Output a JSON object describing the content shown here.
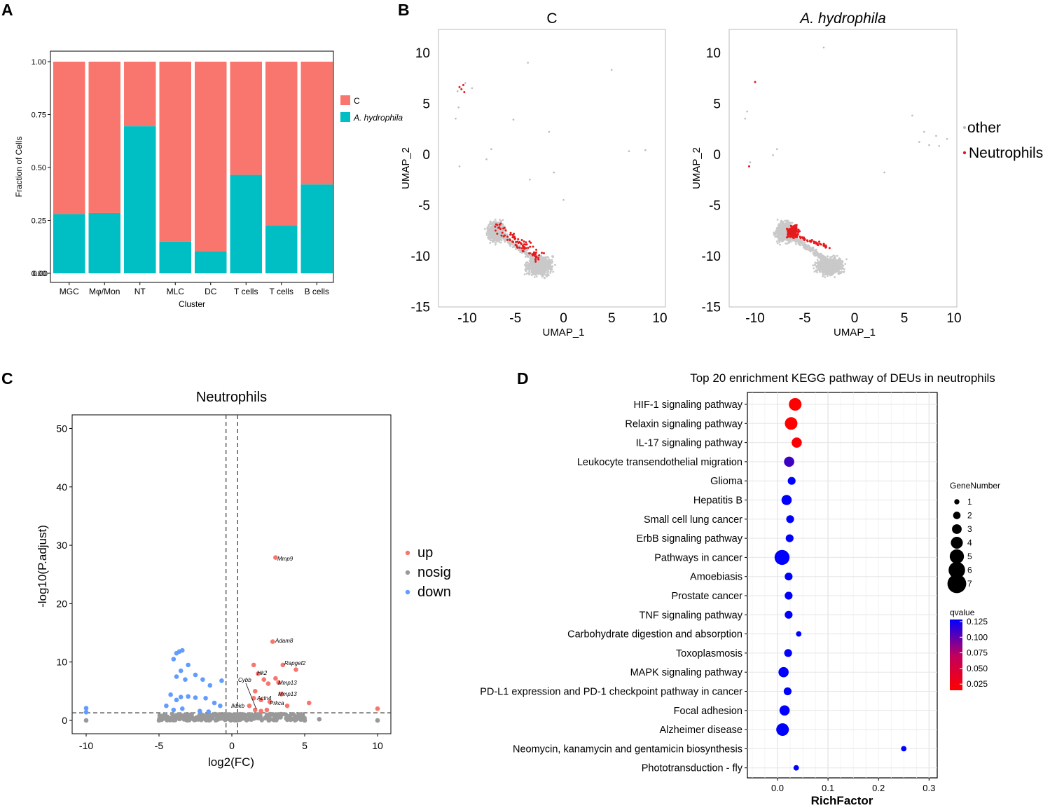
{
  "panel_labels": {
    "a": "A",
    "b": "B",
    "c": "C",
    "d": "D"
  },
  "colors": {
    "c": "#F8766D",
    "ah": "#00BFC4",
    "up": "#F8766D",
    "down": "#619CFF",
    "nosig": "#999999",
    "neutro": "#E41A1C",
    "other": "#C9C9C9",
    "q_low": "#FF0000",
    "q_high": "#0000FF"
  },
  "chart_data": [
    {
      "id": "A",
      "type": "bar",
      "stacked": true,
      "xlabel": "Cluster",
      "ylabel": "Fraction of Cells",
      "ylim": [
        0,
        1
      ],
      "yticks": [
        "0.00",
        "0.25",
        "0.50",
        "0.75",
        "1.00"
      ],
      "y_extra_tick": "0.00",
      "categories": [
        "MGC",
        "Mφ/Mon",
        "NT",
        "MLC",
        "DC",
        "T cells",
        "T cells",
        "B cells"
      ],
      "series": [
        {
          "name": "A. hydrophila",
          "values": [
            0.28,
            0.285,
            0.695,
            0.15,
            0.105,
            0.465,
            0.225,
            0.42
          ]
        },
        {
          "name": "C",
          "values": [
            0.72,
            0.715,
            0.305,
            0.85,
            0.895,
            0.535,
            0.775,
            0.58
          ]
        }
      ],
      "legend": [
        "C",
        "A. hydrophila"
      ]
    },
    {
      "id": "B",
      "type": "scatter",
      "panels": [
        {
          "title": "C",
          "xlabel": "UMAP_1",
          "ylabel": "UMAP_2"
        },
        {
          "title": "A. hydrophila",
          "xlabel": "UMAP_1",
          "ylabel": "UMAP_2"
        }
      ],
      "xticks": [
        "-10",
        "-5",
        "0",
        "5",
        "10"
      ],
      "yticks": [
        "10",
        "5",
        "0",
        "-5",
        "-10",
        "-15"
      ],
      "legend": [
        "other",
        "Neutrophils"
      ],
      "outlier_points": {
        "C": {
          "neutrophils": [
            [
              -10.4,
              6.8
            ],
            [
              -10.6,
              6.4
            ],
            [
              -10.3,
              6.1
            ],
            [
              -10.8,
              6.6
            ]
          ],
          "other": [
            [
              -10.2,
              7.0
            ],
            [
              -11,
              6.2
            ],
            [
              -9.5,
              6.5
            ],
            [
              -10.9,
              4.6
            ],
            [
              -11.2,
              3.5
            ],
            [
              -10.8,
              -1.2
            ],
            [
              -8.0,
              -0.5
            ],
            [
              -7.5,
              0.5
            ],
            [
              -1.5,
              2.2
            ],
            [
              -3.5,
              -2.5
            ],
            [
              -1.0,
              -1.8
            ],
            [
              0,
              -4.5
            ],
            [
              5,
              8.3
            ],
            [
              -3.7,
              9
            ],
            [
              6.8,
              0.3
            ],
            [
              8.5,
              0.4
            ],
            [
              -5.2,
              3.4
            ]
          ]
        },
        "A. hydrophila": {
          "neutrophils": [
            [
              -10.0,
              7.1
            ],
            [
              -10.6,
              -1.2
            ]
          ],
          "other": [
            [
              -10.8,
              4.2
            ],
            [
              -11.0,
              3.5
            ],
            [
              -10.5,
              -0.8
            ],
            [
              -8.2,
              -0.1
            ],
            [
              -7.8,
              0.5
            ],
            [
              -3.1,
              10.5
            ],
            [
              3,
              -1.8
            ],
            [
              5.8,
              3.8
            ],
            [
              7,
              2.2
            ],
            [
              8.2,
              1.8
            ],
            [
              9.3,
              1.5
            ],
            [
              6.5,
              1.2
            ],
            [
              7.5,
              0.9
            ],
            [
              8.5,
              0.8
            ]
          ]
        }
      }
    },
    {
      "id": "C",
      "type": "scatter",
      "title": "Neutrophils",
      "xlabel": "log2(FC)",
      "ylabel": "-log10(P.adjust)",
      "xlim": [
        -11,
        11
      ],
      "ylim": [
        -2,
        52
      ],
      "xticks": [
        "-10",
        "-5",
        "0",
        "5",
        "10"
      ],
      "yticks": [
        "0",
        "10",
        "20",
        "30",
        "40",
        "50"
      ],
      "vlines": [
        -0.4,
        0.4
      ],
      "hline": 1.3,
      "legend": [
        "up",
        "nosig",
        "down"
      ],
      "up": [
        [
          3,
          27.9
        ],
        [
          2.8,
          13.5
        ],
        [
          3.5,
          9.5
        ],
        [
          4.4,
          8.7
        ],
        [
          1.5,
          9.5
        ],
        [
          1.8,
          8
        ],
        [
          2.2,
          7
        ],
        [
          2.5,
          6.3
        ],
        [
          3,
          7.2
        ],
        [
          3.2,
          6.5
        ],
        [
          3.4,
          4.5
        ],
        [
          1.6,
          5
        ],
        [
          5.3,
          3
        ],
        [
          1.5,
          3.8
        ],
        [
          2,
          3.5
        ],
        [
          2.6,
          3.2
        ],
        [
          3.8,
          2.5
        ],
        [
          1.2,
          2.5
        ],
        [
          1.6,
          1.8
        ],
        [
          2.0,
          1.6
        ],
        [
          2.4,
          1.8
        ],
        [
          10,
          2
        ]
      ],
      "down": [
        [
          -3.8,
          11.5
        ],
        [
          -3.6,
          11.8
        ],
        [
          -3.4,
          12
        ],
        [
          -4,
          10.5
        ],
        [
          -3.0,
          9.5
        ],
        [
          -3.5,
          8.5
        ],
        [
          -3.8,
          7.5
        ],
        [
          -2.5,
          7.8
        ],
        [
          -3.2,
          7
        ],
        [
          -2,
          7
        ],
        [
          -0.7,
          6.8
        ],
        [
          -1.5,
          6
        ],
        [
          -4.2,
          4.4
        ],
        [
          -3.5,
          4
        ],
        [
          -3,
          4.1
        ],
        [
          -2.5,
          3.9
        ],
        [
          -1.8,
          3.8
        ],
        [
          -1.2,
          3
        ],
        [
          -0.8,
          2.5
        ],
        [
          -3.8,
          3.5
        ],
        [
          -3.4,
          2
        ],
        [
          -4.5,
          2.5
        ],
        [
          -4.0,
          1.8
        ],
        [
          -2.2,
          1.6
        ],
        [
          -1.6,
          1.5
        ],
        [
          -10,
          2.1
        ],
        [
          -10,
          1.4
        ]
      ],
      "nosig": [
        [
          -10,
          0
        ],
        [
          6,
          0.2
        ],
        [
          10,
          0
        ],
        [
          -5,
          0
        ],
        [
          5,
          0
        ]
      ],
      "gene_labels": [
        "Mmp9",
        "Adam8",
        "Rapgef2",
        "Hk2",
        "Cybb",
        "Mmp13",
        "Mmp13",
        "Actn4",
        "Prkca",
        "Ikbkb"
      ]
    },
    {
      "id": "D",
      "type": "scatter",
      "title": "Top 20 enrichment KEGG pathway of DEUs in neutrophils",
      "xlabel": "RichFactor",
      "xlim": [
        -0.05,
        0.32
      ],
      "xticks": [
        "0.0",
        "0.1",
        "0.2",
        "0.3"
      ],
      "size_legend_title": "GeneNumber",
      "size_legend": [
        "1",
        "2",
        "3",
        "4",
        "5",
        "6",
        "7"
      ],
      "color_legend_title": "qvalue",
      "color_legend": [
        "0.125",
        "0.100",
        "0.075",
        "0.050",
        "0.025"
      ],
      "pathways": [
        {
          "name": "HIF-1 signaling pathway",
          "rich": 0.035,
          "genes": 4,
          "q": 0.02
        },
        {
          "name": "Relaxin signaling pathway",
          "rich": 0.027,
          "genes": 4,
          "q": 0.02
        },
        {
          "name": "IL-17 signaling pathway",
          "rich": 0.038,
          "genes": 3,
          "q": 0.022
        },
        {
          "name": "Leukocyte transendothelial migration",
          "rich": 0.023,
          "genes": 3,
          "q": 0.1
        },
        {
          "name": "Glioma",
          "rich": 0.028,
          "genes": 2,
          "q": 0.125
        },
        {
          "name": "Hepatitis B",
          "rich": 0.018,
          "genes": 3,
          "q": 0.125
        },
        {
          "name": "Small cell lung cancer",
          "rich": 0.025,
          "genes": 2,
          "q": 0.125
        },
        {
          "name": "ErbB signaling pathway",
          "rich": 0.024,
          "genes": 2,
          "q": 0.125
        },
        {
          "name": "Pathways in cancer",
          "rich": 0.009,
          "genes": 5,
          "q": 0.125
        },
        {
          "name": "Amoebiasis",
          "rich": 0.022,
          "genes": 2,
          "q": 0.125
        },
        {
          "name": "Prostate cancer",
          "rich": 0.022,
          "genes": 2,
          "q": 0.125
        },
        {
          "name": "TNF signaling pathway",
          "rich": 0.022,
          "genes": 2,
          "q": 0.125
        },
        {
          "name": "Carbohydrate digestion and absorption",
          "rich": 0.042,
          "genes": 1,
          "q": 0.125
        },
        {
          "name": "Toxoplasmosis",
          "rich": 0.021,
          "genes": 2,
          "q": 0.125
        },
        {
          "name": "MAPK signaling pathway",
          "rich": 0.012,
          "genes": 3,
          "q": 0.125
        },
        {
          "name": "PD-L1 expression and PD-1 checkpoint pathway in cancer",
          "rich": 0.02,
          "genes": 2,
          "q": 0.125
        },
        {
          "name": "Focal adhesion",
          "rich": 0.014,
          "genes": 3,
          "q": 0.125
        },
        {
          "name": "Alzheimer disease",
          "rich": 0.01,
          "genes": 4,
          "q": 0.125
        },
        {
          "name": "Neomycin, kanamycin and gentamicin biosynthesis",
          "rich": 0.25,
          "genes": 1,
          "q": 0.125
        },
        {
          "name": "Phototransduction - fly",
          "rich": 0.037,
          "genes": 1,
          "q": 0.125
        }
      ]
    }
  ]
}
